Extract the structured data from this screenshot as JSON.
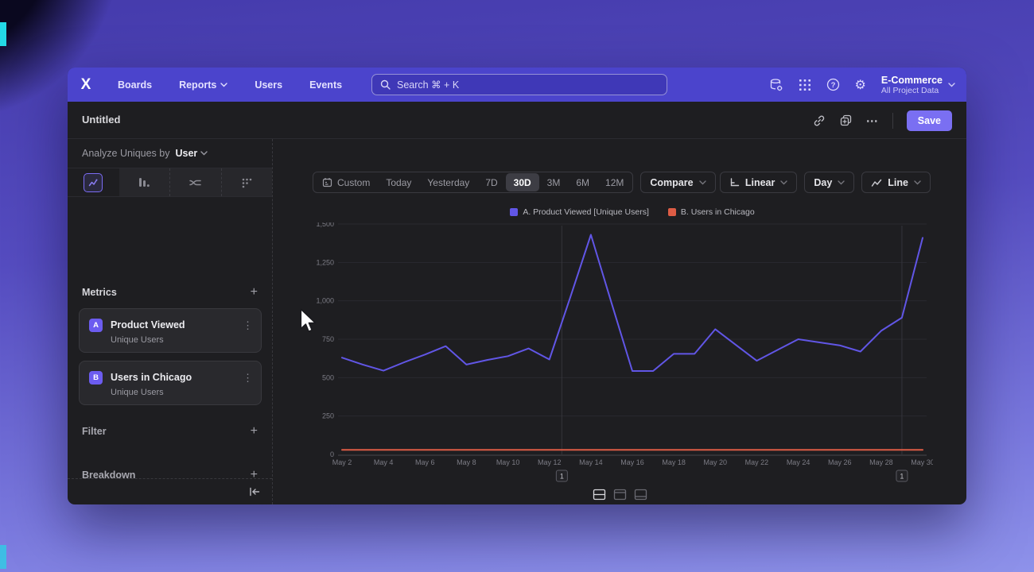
{
  "nav": {
    "logo": "X",
    "items": [
      {
        "label": "Boards"
      },
      {
        "label": "Reports"
      },
      {
        "label": "Users"
      },
      {
        "label": "Events"
      }
    ],
    "search_placeholder": "Search  ⌘ + K",
    "project": {
      "name": "E-Commerce",
      "scope": "All Project Data"
    }
  },
  "title_bar": {
    "title": "Untitled",
    "more_label": "⋯",
    "save_label": "Save"
  },
  "icons": {
    "settings_glyph": "⚙",
    "more_vertical_glyph": "⋮",
    "nav_right": [
      "data-settings-icon",
      "apps-grid-icon",
      "help-icon",
      "settings-icon"
    ],
    "title_actions": [
      "link-icon",
      "duplicate-icon",
      "more-icon"
    ]
  },
  "sidebar": {
    "analyze_prefix": "Analyze Uniques by",
    "analyze_value": "User",
    "viz_tabs": [
      "insights-line",
      "bar",
      "flows",
      "retention"
    ],
    "active_viz_tab": "insights-line",
    "metrics": {
      "header": "Metrics",
      "add": "+",
      "items": [
        {
          "badge": "A",
          "name": "Product Viewed",
          "subtitle": "Unique Users"
        },
        {
          "badge": "B",
          "name": "Users in Chicago",
          "subtitle": "Unique Users"
        }
      ]
    },
    "filter": {
      "header": "Filter",
      "add": "+"
    },
    "breakdown": {
      "header": "Breakdown",
      "add": "+"
    }
  },
  "toolbar": {
    "ranges": [
      "Custom",
      "Today",
      "Yesterday",
      "7D",
      "30D",
      "3M",
      "6M",
      "12M"
    ],
    "active_range": "30D",
    "compare": "Compare",
    "scale": "Linear",
    "granularity": "Day",
    "chart_type": "Line"
  },
  "chart_data": {
    "type": "line",
    "x_unit": "day",
    "num_points": 29,
    "x_tick_labels": [
      "May 2",
      "May 4",
      "May 6",
      "May 8",
      "May 10",
      "May 12",
      "May 14",
      "May 16",
      "May 18",
      "May 20",
      "May 22",
      "May 24",
      "May 26",
      "May 28",
      "May 30"
    ],
    "x_tick_every": 2,
    "ylim": [
      0,
      1500
    ],
    "yticks": [
      0,
      250,
      500,
      750,
      1000,
      1250,
      1500
    ],
    "grid": "horizontal",
    "legend_position": "top-center",
    "series": [
      {
        "name": "A. Product Viewed [Unique Users]",
        "color": "#6156e6",
        "values": [
          630,
          585,
          545,
          600,
          650,
          705,
          585,
          615,
          640,
          690,
          618,
          1020,
          1430,
          985,
          543,
          543,
          655,
          655,
          815,
          712,
          610,
          680,
          750,
          730,
          710,
          670,
          805,
          890,
          1410
        ]
      },
      {
        "name": "B. Users in Chicago",
        "color": "#dd5c45",
        "values": [
          30,
          30,
          30,
          30,
          30,
          30,
          30,
          30,
          30,
          30,
          30,
          30,
          30,
          30,
          30,
          30,
          30,
          30,
          30,
          30,
          30,
          30,
          30,
          30,
          30,
          30,
          30,
          30,
          30
        ]
      }
    ],
    "annotations": [
      {
        "label": "1",
        "day_index": 10.6
      },
      {
        "label": "1",
        "day_index": 27
      }
    ],
    "layout_options": [
      "split-view",
      "chart-view",
      "table-view"
    ],
    "active_layout": "split-view"
  }
}
